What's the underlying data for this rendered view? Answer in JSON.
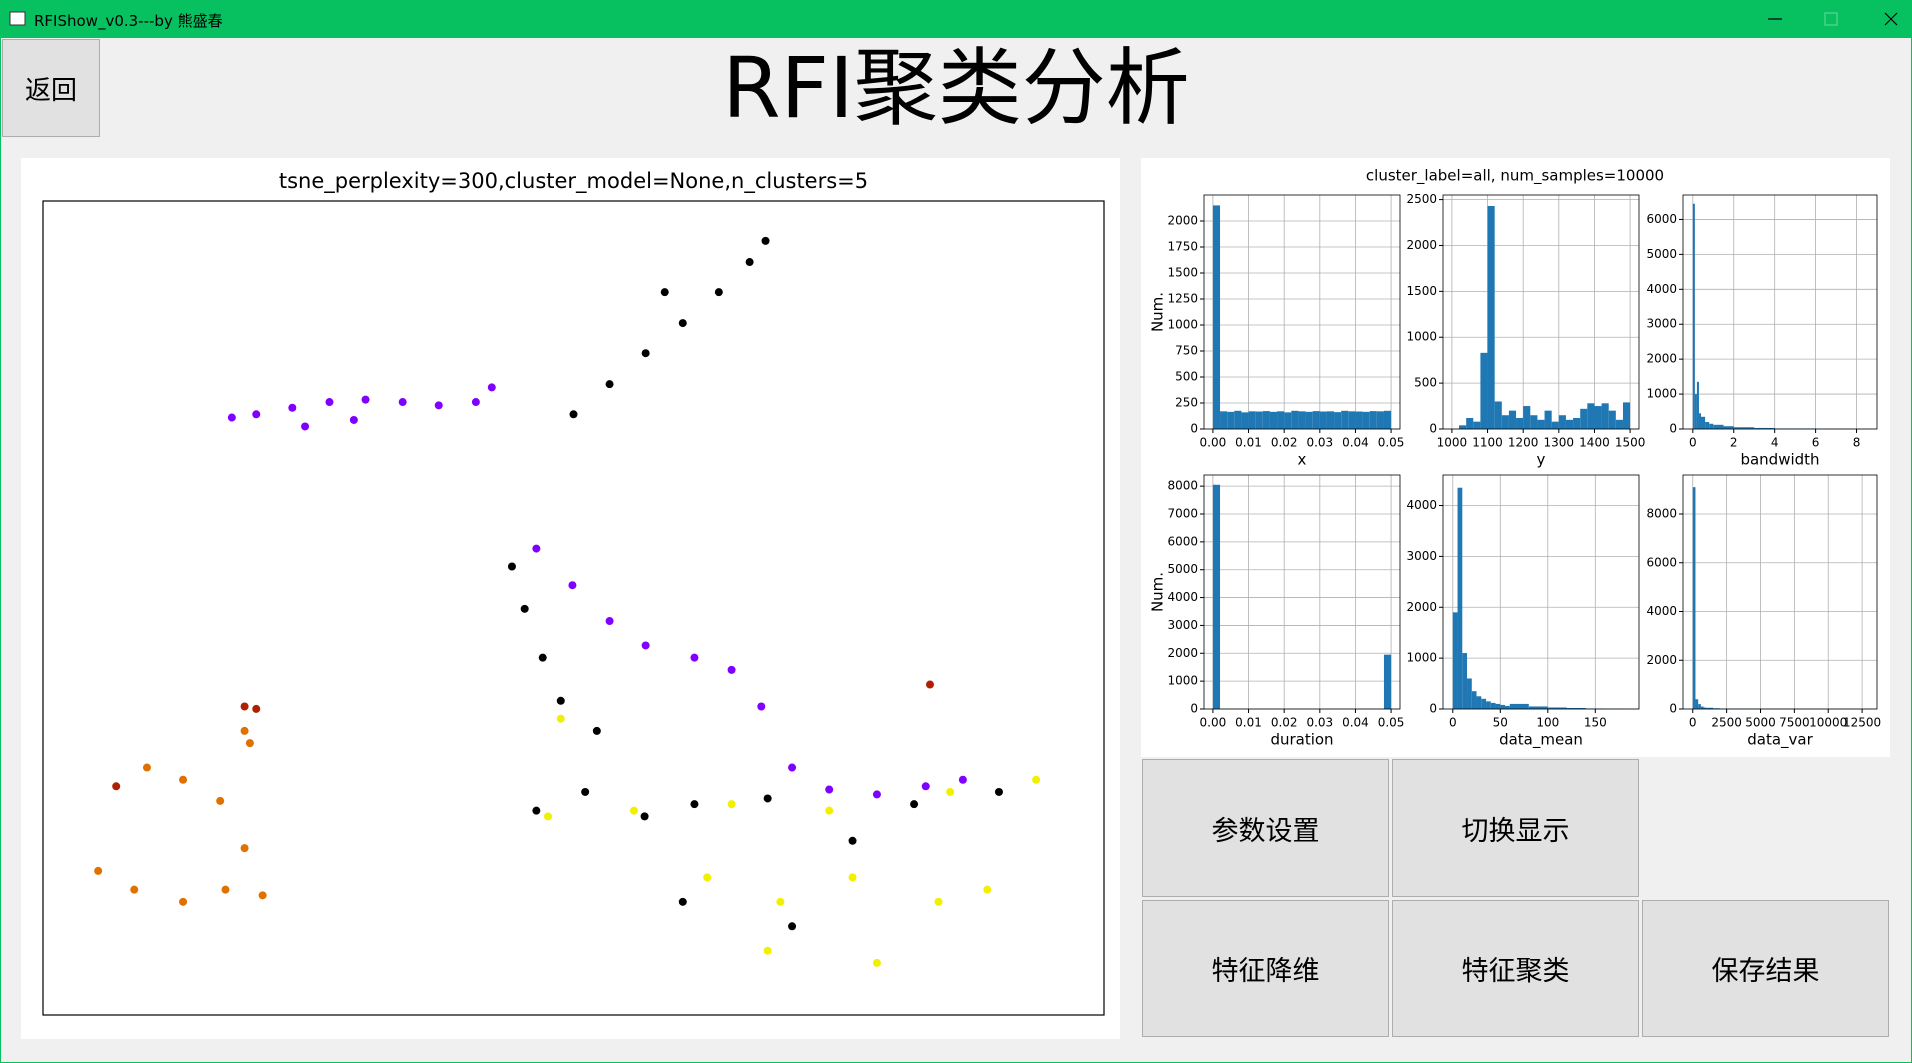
{
  "window": {
    "title": "RFIShow_v0.3---by 熊盛春"
  },
  "header": {
    "back_button": "返回",
    "title": "RFI聚类分析"
  },
  "histogram_panel_title": "cluster_label=all, num_samples=10000",
  "buttons": [
    [
      "参数设置",
      "切换显示"
    ],
    [
      "特征降维",
      "特征聚类",
      "保存结果"
    ]
  ],
  "chart_data": [
    {
      "type": "scatter",
      "title": "tsne_perplexity=300,cluster_model=None,n_clusters=5",
      "xlim": [
        0,
        100
      ],
      "ylim": [
        0,
        100
      ],
      "series": [
        {
          "color": "#8000ff",
          "x": [
            17.8,
            20.1,
            23.5,
            27.0,
            30.4,
            33.9,
            37.3,
            40.8,
            42.3,
            24.7,
            29.3,
            46.5,
            49.9,
            53.4,
            56.8,
            61.4,
            64.9,
            67.7,
            70.6,
            74.1,
            78.6,
            83.2,
            86.7
          ],
          "y": [
            73.4,
            73.8,
            74.6,
            75.3,
            75.6,
            75.3,
            74.9,
            75.3,
            77.1,
            72.3,
            73.1,
            57.3,
            52.8,
            48.4,
            45.4,
            43.9,
            42.4,
            37.9,
            30.4,
            27.7,
            27.1,
            28.1,
            28.9
          ]
        },
        {
          "color": "#000000",
          "x": [
            50.0,
            53.4,
            56.8,
            60.3,
            63.7,
            66.6,
            68.1,
            58.6,
            44.2,
            45.4,
            47.1,
            48.8,
            52.2,
            46.5,
            51.1,
            56.7,
            61.4,
            68.3,
            76.3,
            82.1,
            90.1,
            70.6,
            60.3
          ],
          "y": [
            73.8,
            77.5,
            81.3,
            85.0,
            88.8,
            92.5,
            95.1,
            88.8,
            55.1,
            49.9,
            43.9,
            38.6,
            34.9,
            25.1,
            27.4,
            24.4,
            25.9,
            26.6,
            21.4,
            25.9,
            27.4,
            10.9,
            13.9
          ]
        },
        {
          "color": "#f0f000",
          "x": [
            47.6,
            55.7,
            64.9,
            74.1,
            85.5,
            93.6,
            69.5,
            68.3,
            76.3,
            78.6,
            84.4,
            89.0,
            48.8,
            62.6
          ],
          "y": [
            24.4,
            25.1,
            25.9,
            25.1,
            27.4,
            28.9,
            13.9,
            7.9,
            16.9,
            6.4,
            13.9,
            15.4,
            36.4,
            16.9
          ]
        },
        {
          "color": "#e07000",
          "x": [
            9.8,
            13.2,
            16.7,
            19.0,
            20.7,
            5.2,
            8.6,
            13.2,
            17.2,
            19.0,
            19.5
          ],
          "y": [
            30.4,
            28.9,
            26.3,
            20.5,
            14.7,
            17.7,
            15.4,
            13.9,
            15.4,
            34.9,
            33.4
          ]
        },
        {
          "color": "#b02000",
          "x": [
            19.0,
            20.1,
            6.9,
            83.6
          ],
          "y": [
            37.9,
            37.6,
            28.1,
            40.6
          ]
        }
      ]
    },
    {
      "type": "histogram",
      "xlabel": "x",
      "ylabel": "Num.",
      "color": "#1f77b4",
      "grid": true,
      "bins": [
        0,
        0.002,
        0.004,
        0.006,
        0.008,
        0.01,
        0.012,
        0.014,
        0.016,
        0.018,
        0.02,
        0.022,
        0.024,
        0.026,
        0.028,
        0.03,
        0.032,
        0.034,
        0.036,
        0.038,
        0.04,
        0.042,
        0.044,
        0.046,
        0.048,
        0.05
      ],
      "values": [
        2150,
        170,
        165,
        175,
        160,
        170,
        168,
        172,
        165,
        170,
        160,
        175,
        170,
        165,
        172,
        168,
        170,
        162,
        175,
        170,
        168,
        165,
        172,
        170,
        175
      ],
      "xlim": [
        -0.0025,
        0.0525
      ],
      "ylim": [
        0,
        2250
      ],
      "xticks": [
        {
          "value": 0,
          "label": "0.00"
        },
        {
          "value": 0.01,
          "label": "0.01"
        },
        {
          "value": 0.02,
          "label": "0.02"
        },
        {
          "value": 0.03,
          "label": "0.03"
        },
        {
          "value": 0.04,
          "label": "0.04"
        },
        {
          "value": 0.05,
          "label": "0.05"
        }
      ],
      "yticks": [
        0,
        250,
        500,
        750,
        1000,
        1250,
        1500,
        1750,
        2000
      ]
    },
    {
      "type": "histogram",
      "xlabel": "y",
      "color": "#1f77b4",
      "grid": true,
      "bins": [
        1000,
        1020,
        1040,
        1060,
        1080,
        1100,
        1120,
        1140,
        1160,
        1180,
        1200,
        1220,
        1240,
        1260,
        1280,
        1300,
        1320,
        1340,
        1360,
        1380,
        1400,
        1420,
        1440,
        1460,
        1480,
        1500
      ],
      "values": [
        0,
        40,
        120,
        80,
        830,
        2430,
        300,
        150,
        200,
        120,
        250,
        150,
        100,
        200,
        80,
        150,
        100,
        120,
        220,
        280,
        250,
        280,
        200,
        100,
        290
      ],
      "xlim": [
        975,
        1525
      ],
      "ylim": [
        0,
        2550
      ],
      "xticks": [
        1000,
        1100,
        1200,
        1300,
        1400,
        1500
      ],
      "yticks": [
        0,
        500,
        1000,
        1500,
        2000,
        2500
      ]
    },
    {
      "type": "histogram",
      "xlabel": "bandwidth",
      "color": "#1f77b4",
      "grid": true,
      "bins": [
        0,
        0.1,
        0.2,
        0.3,
        0.4,
        0.6,
        0.8,
        1.0,
        1.5,
        2,
        3,
        4,
        6,
        8,
        9
      ],
      "values": [
        6450,
        1000,
        1350,
        450,
        350,
        200,
        150,
        120,
        80,
        50,
        30,
        15,
        5,
        2
      ],
      "xlim": [
        -0.48,
        9.0
      ],
      "ylim": [
        0,
        6700
      ],
      "xticks": [
        0,
        2,
        4,
        6,
        8
      ],
      "yticks": [
        0,
        1000,
        2000,
        3000,
        4000,
        5000,
        6000
      ]
    },
    {
      "type": "histogram",
      "xlabel": "duration",
      "ylabel": "Num.",
      "color": "#1f77b4",
      "grid": true,
      "bins": [
        0,
        0.002,
        0.004,
        0.006,
        0.008,
        0.01,
        0.012,
        0.014,
        0.016,
        0.018,
        0.02,
        0.022,
        0.024,
        0.026,
        0.028,
        0.03,
        0.032,
        0.034,
        0.036,
        0.038,
        0.04,
        0.042,
        0.044,
        0.046,
        0.048,
        0.05
      ],
      "values": [
        8050,
        0,
        0,
        0,
        0,
        0,
        0,
        0,
        0,
        0,
        0,
        0,
        0,
        0,
        0,
        0,
        0,
        0,
        0,
        0,
        0,
        0,
        0,
        0,
        1950
      ],
      "xlim": [
        -0.0025,
        0.0525
      ],
      "ylim": [
        0,
        8400
      ],
      "xticks": [
        {
          "value": 0,
          "label": "0.00"
        },
        {
          "value": 0.01,
          "label": "0.01"
        },
        {
          "value": 0.02,
          "label": "0.02"
        },
        {
          "value": 0.03,
          "label": "0.03"
        },
        {
          "value": 0.04,
          "label": "0.04"
        },
        {
          "value": 0.05,
          "label": "0.05"
        }
      ],
      "yticks": [
        0,
        1000,
        2000,
        3000,
        4000,
        5000,
        6000,
        7000,
        8000
      ]
    },
    {
      "type": "histogram",
      "xlabel": "data_mean",
      "color": "#1f77b4",
      "grid": true,
      "bins": [
        0,
        5,
        10,
        15,
        20,
        25,
        30,
        35,
        40,
        45,
        50,
        55,
        60,
        80,
        100,
        120,
        140,
        160,
        180
      ],
      "values": [
        1900,
        4350,
        1100,
        600,
        350,
        250,
        200,
        150,
        120,
        100,
        80,
        60,
        100,
        50,
        30,
        20,
        10,
        5
      ],
      "xlim": [
        -10.3,
        196
      ],
      "ylim": [
        0,
        4600
      ],
      "xticks": [
        0,
        50,
        100,
        150
      ],
      "yticks": [
        0,
        1000,
        2000,
        3000,
        4000
      ]
    },
    {
      "type": "histogram",
      "xlabel": "data_var",
      "color": "#1f77b4",
      "grid": true,
      "bins": [
        0,
        200,
        400,
        600,
        800,
        1000,
        1500,
        2000,
        3000,
        5000,
        8000,
        13000
      ],
      "values": [
        9100,
        400,
        200,
        100,
        60,
        50,
        30,
        20,
        15,
        10,
        5
      ],
      "xlim": [
        -720,
        13600
      ],
      "ylim": [
        0,
        9600
      ],
      "xticks": [
        0,
        2500,
        5000,
        7500,
        10000,
        12500
      ],
      "yticks": [
        0,
        2000,
        4000,
        6000,
        8000
      ]
    }
  ]
}
